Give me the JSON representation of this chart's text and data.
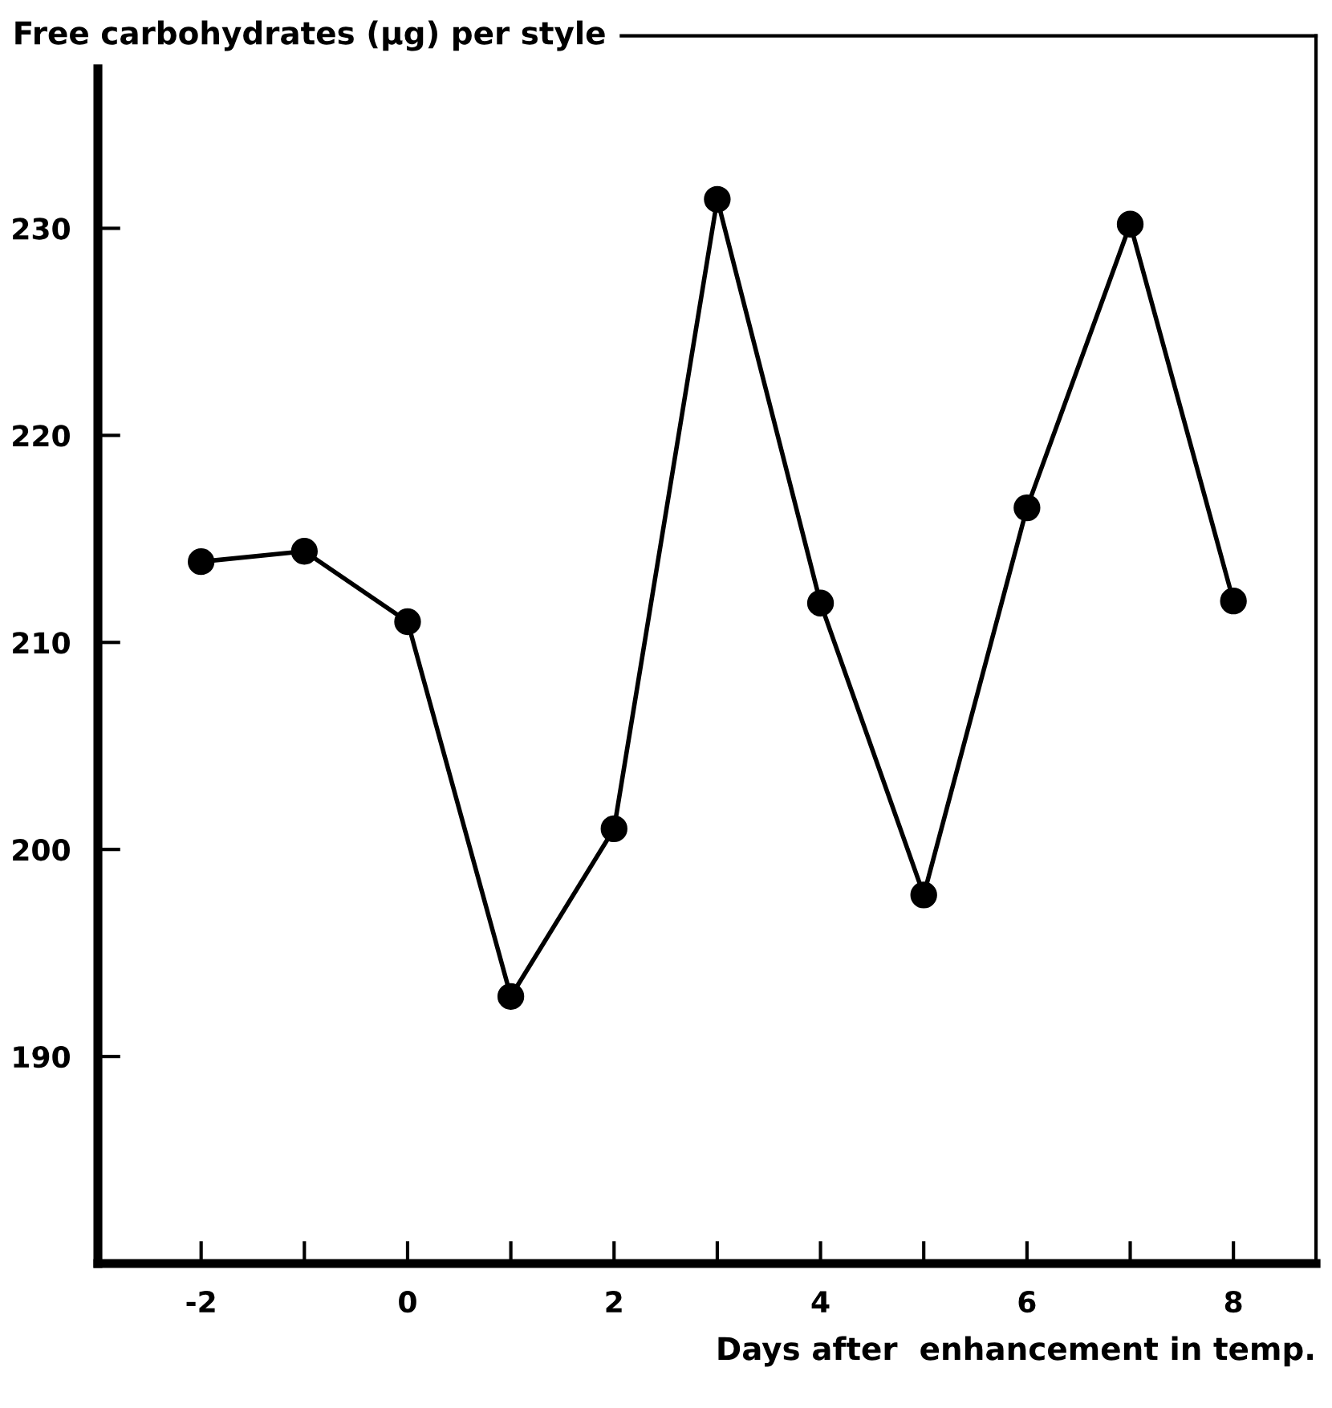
{
  "chart_data": {
    "type": "line",
    "ylabel": "Free carbohydrates (μg) per style",
    "xlabel": "Days after  enhancement in temp.",
    "x": [
      -2,
      -1,
      0,
      1,
      2,
      3,
      4,
      5,
      6,
      7,
      8
    ],
    "series": [
      {
        "color": "#000000",
        "values": [
          213.9,
          214.4,
          211.0,
          192.9,
          201.0,
          231.4,
          211.9,
          197.8,
          216.5,
          230.2,
          212.0
        ]
      }
    ],
    "xlim": [
      -3.0,
      8.8
    ],
    "ylim": [
      180,
      239.3
    ],
    "xticks": [
      -2,
      {
        "value": -1,
        "label": null
      },
      0,
      {
        "value": 1,
        "label": null
      },
      2,
      {
        "value": 3,
        "label": null
      },
      4,
      {
        "value": 5,
        "label": null
      },
      6,
      {
        "value": 7,
        "label": null
      },
      8
    ],
    "yticks": [
      190,
      200,
      210,
      220,
      230
    ],
    "marker": "circle",
    "line_style": "solid",
    "grid": false,
    "legend": false
  }
}
